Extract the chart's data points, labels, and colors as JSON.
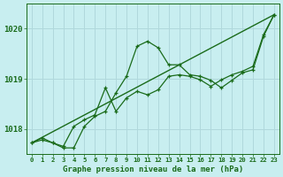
{
  "title": "Graphe pression niveau de la mer (hPa)",
  "background_color": "#c8eef0",
  "grid_color": "#b0d8dc",
  "line_color": "#1a6b1a",
  "xlim": [
    -0.5,
    23.5
  ],
  "ylim": [
    1017.5,
    1020.5
  ],
  "yticks": [
    1018,
    1019,
    1020
  ],
  "xticks": [
    0,
    1,
    2,
    3,
    4,
    5,
    6,
    7,
    8,
    9,
    10,
    11,
    12,
    13,
    14,
    15,
    16,
    17,
    18,
    19,
    20,
    21,
    22,
    23
  ],
  "series1_x": [
    0,
    1,
    2,
    3,
    4,
    5,
    6,
    7,
    8,
    9,
    10,
    11,
    12,
    13,
    14,
    15,
    16,
    17,
    18,
    19,
    20,
    21,
    22,
    23
  ],
  "series1_y": [
    1017.72,
    1017.82,
    1017.72,
    1017.62,
    1017.62,
    1018.05,
    1018.25,
    1018.35,
    1018.72,
    1019.05,
    1019.65,
    1019.75,
    1019.62,
    1019.28,
    1019.28,
    1019.08,
    1019.05,
    1018.97,
    1018.82,
    1018.97,
    1019.12,
    1019.18,
    1019.85,
    1020.28
  ],
  "series2_x": [
    0,
    1,
    2,
    3,
    4,
    5,
    6,
    7,
    8,
    9,
    10,
    11,
    12,
    13,
    14,
    15,
    16,
    17,
    18,
    19,
    20,
    21,
    22,
    23
  ],
  "series2_y": [
    1017.72,
    1017.78,
    1017.72,
    1017.65,
    1018.05,
    1018.18,
    1018.28,
    1018.82,
    1018.35,
    1018.62,
    1018.75,
    1018.68,
    1018.78,
    1019.05,
    1019.08,
    1019.05,
    1018.98,
    1018.85,
    1018.98,
    1019.08,
    1019.15,
    1019.25,
    1019.88,
    1020.28
  ],
  "series3_x": [
    0,
    23
  ],
  "series3_y": [
    1017.72,
    1020.28
  ]
}
